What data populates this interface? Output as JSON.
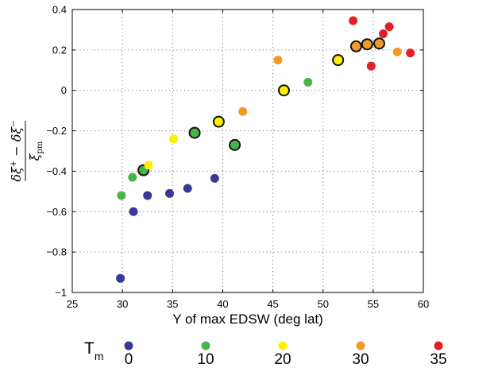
{
  "chart_data": {
    "type": "scatter",
    "xlabel": "Y of max EDSW (deg lat)",
    "ylabel": {
      "numerator": [
        "δξ",
        "+",
        " − δξ",
        "−"
      ],
      "denominator": [
        "ξ",
        "pm"
      ]
    },
    "xlim": [
      25,
      60
    ],
    "ylim": [
      -1,
      0.4
    ],
    "xticks": [
      25,
      30,
      35,
      40,
      45,
      50,
      55,
      60
    ],
    "yticks": [
      -1,
      -0.8,
      -0.6,
      -0.4,
      -0.2,
      0,
      0.2,
      0.4
    ],
    "xtick_labels": [
      "25",
      "30",
      "35",
      "40",
      "45",
      "50",
      "55",
      "60"
    ],
    "ytick_labels": [
      "−1",
      "−0.8",
      "−0.6",
      "−0.4",
      "−0.2",
      "0",
      "0.2",
      "0.4"
    ],
    "grid": true,
    "legend": {
      "title": "T",
      "title_sub": "m",
      "placement": "bottom"
    },
    "series": [
      {
        "name": "0",
        "color": "#3a3896",
        "points": [
          {
            "x": 29.8,
            "y": -0.93,
            "outlined": false
          },
          {
            "x": 31.1,
            "y": -0.6,
            "outlined": false
          },
          {
            "x": 32.5,
            "y": -0.52,
            "outlined": false
          },
          {
            "x": 34.7,
            "y": -0.51,
            "outlined": false
          },
          {
            "x": 36.5,
            "y": -0.485,
            "outlined": false
          },
          {
            "x": 39.2,
            "y": -0.435,
            "outlined": false
          }
        ]
      },
      {
        "name": "10",
        "color": "#4bb34b",
        "points": [
          {
            "x": 29.9,
            "y": -0.52,
            "outlined": false
          },
          {
            "x": 31.0,
            "y": -0.43,
            "outlined": false
          },
          {
            "x": 32.1,
            "y": -0.395,
            "outlined": true
          },
          {
            "x": 37.2,
            "y": -0.21,
            "outlined": true
          },
          {
            "x": 41.2,
            "y": -0.27,
            "outlined": true
          },
          {
            "x": 48.5,
            "y": 0.04,
            "outlined": false
          }
        ]
      },
      {
        "name": "20",
        "color": "#fff000",
        "points": [
          {
            "x": 32.6,
            "y": -0.37,
            "outlined": false
          },
          {
            "x": 35.1,
            "y": -0.24,
            "outlined": false
          },
          {
            "x": 39.6,
            "y": -0.155,
            "outlined": true
          },
          {
            "x": 46.1,
            "y": 0.0,
            "outlined": true
          },
          {
            "x": 51.5,
            "y": 0.15,
            "outlined": true
          },
          {
            "x": 53.3,
            "y": 0.225,
            "outlined": false
          }
        ]
      },
      {
        "name": "30",
        "color": "#f39a24",
        "points": [
          {
            "x": 42.0,
            "y": -0.105,
            "outlined": false
          },
          {
            "x": 45.5,
            "y": 0.15,
            "outlined": false
          },
          {
            "x": 53.3,
            "y": 0.218,
            "outlined": true
          },
          {
            "x": 54.4,
            "y": 0.228,
            "outlined": true
          },
          {
            "x": 55.6,
            "y": 0.232,
            "outlined": true
          },
          {
            "x": 57.4,
            "y": 0.19,
            "outlined": false
          }
        ]
      },
      {
        "name": "35",
        "color": "#e21f26",
        "points": [
          {
            "x": 53.0,
            "y": 0.345,
            "outlined": false
          },
          {
            "x": 54.8,
            "y": 0.12,
            "outlined": false
          },
          {
            "x": 56.0,
            "y": 0.28,
            "outlined": false
          },
          {
            "x": 56.6,
            "y": 0.315,
            "outlined": false
          },
          {
            "x": 58.7,
            "y": 0.185,
            "outlined": false
          }
        ]
      }
    ]
  }
}
